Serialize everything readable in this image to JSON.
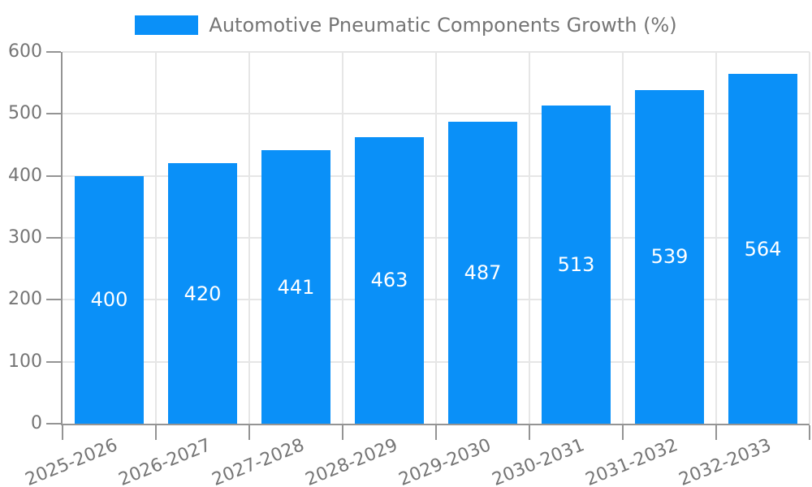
{
  "chart_data": {
    "type": "bar",
    "title": "Automotive Pneumatic Components Growth (%)",
    "categories": [
      "2025-2026",
      "2026-2027",
      "2027-2028",
      "2028-2029",
      "2029-2030",
      "2030-2031",
      "2031-2032",
      "2032-2033"
    ],
    "values": [
      400,
      420,
      441,
      463,
      487,
      513,
      539,
      564
    ],
    "ylim": [
      0,
      600
    ],
    "yticks": [
      0,
      100,
      200,
      300,
      400,
      500,
      600
    ],
    "grid": true,
    "legend_position": "top",
    "x_label_rotation_deg": -22,
    "colors": {
      "bar": "#0A90F8",
      "bar_label": "#FFFFFF",
      "axis": "#949494",
      "grid": "#E6E6E6",
      "tick_label": "#757575",
      "legend_text": "#757575",
      "background": "#FFFFFF"
    }
  }
}
